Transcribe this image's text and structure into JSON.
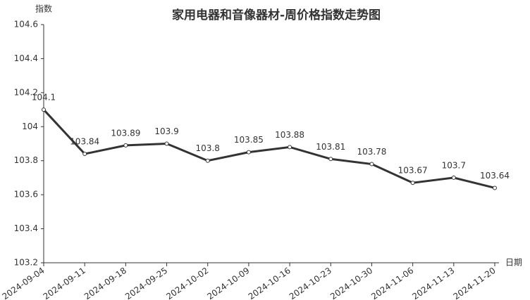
{
  "chart_data": {
    "type": "line",
    "title": "家用电器和音像器材-周价格指数走势图",
    "y_label": "指数",
    "x_label": "日期",
    "categories": [
      "2024-09-04",
      "2024-09-11",
      "2024-09-18",
      "2024-09-25",
      "2024-10-02",
      "2024-10-09",
      "2024-10-16",
      "2024-10-23",
      "2024-10-30",
      "2024-11-06",
      "2024-11-13",
      "2024-11-20"
    ],
    "values": [
      104.1,
      103.84,
      103.89,
      103.9,
      103.8,
      103.85,
      103.88,
      103.81,
      103.78,
      103.67,
      103.7,
      103.64
    ],
    "color": "#333333",
    "ylim": [
      103.2,
      104.6
    ],
    "yticks": [
      103.2,
      103.4,
      103.6,
      103.8,
      104,
      104.2,
      104.4,
      104.6
    ],
    "grid": false
  }
}
